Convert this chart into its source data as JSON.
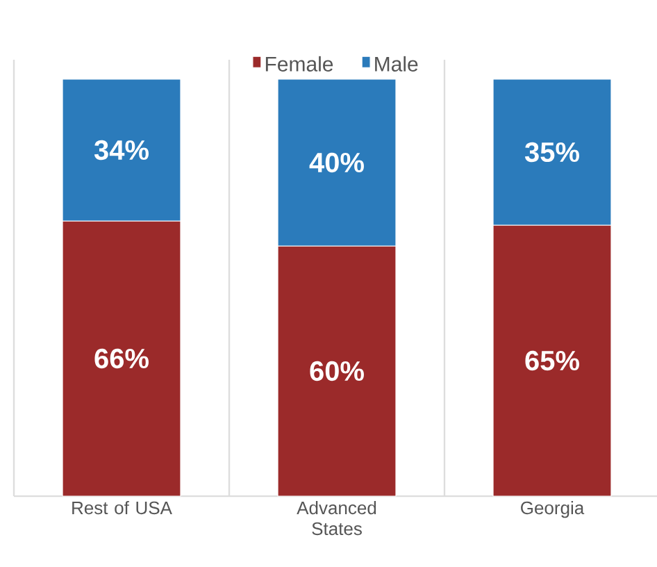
{
  "chart_data": {
    "type": "bar",
    "stacked": true,
    "categories": [
      "Rest of USA",
      "Advanced States",
      "Georgia"
    ],
    "series": [
      {
        "name": "Female",
        "color": "#9b2a2a",
        "values": [
          66,
          60,
          65
        ],
        "value_labels": [
          "66%",
          "60%",
          "65%"
        ]
      },
      {
        "name": "Male",
        "color": "#2b7bbb",
        "values": [
          34,
          40,
          35
        ],
        "value_labels": [
          "34%",
          "40%",
          "35%"
        ]
      }
    ],
    "legend": "top",
    "grid": "x",
    "tick_labels": "x"
  }
}
